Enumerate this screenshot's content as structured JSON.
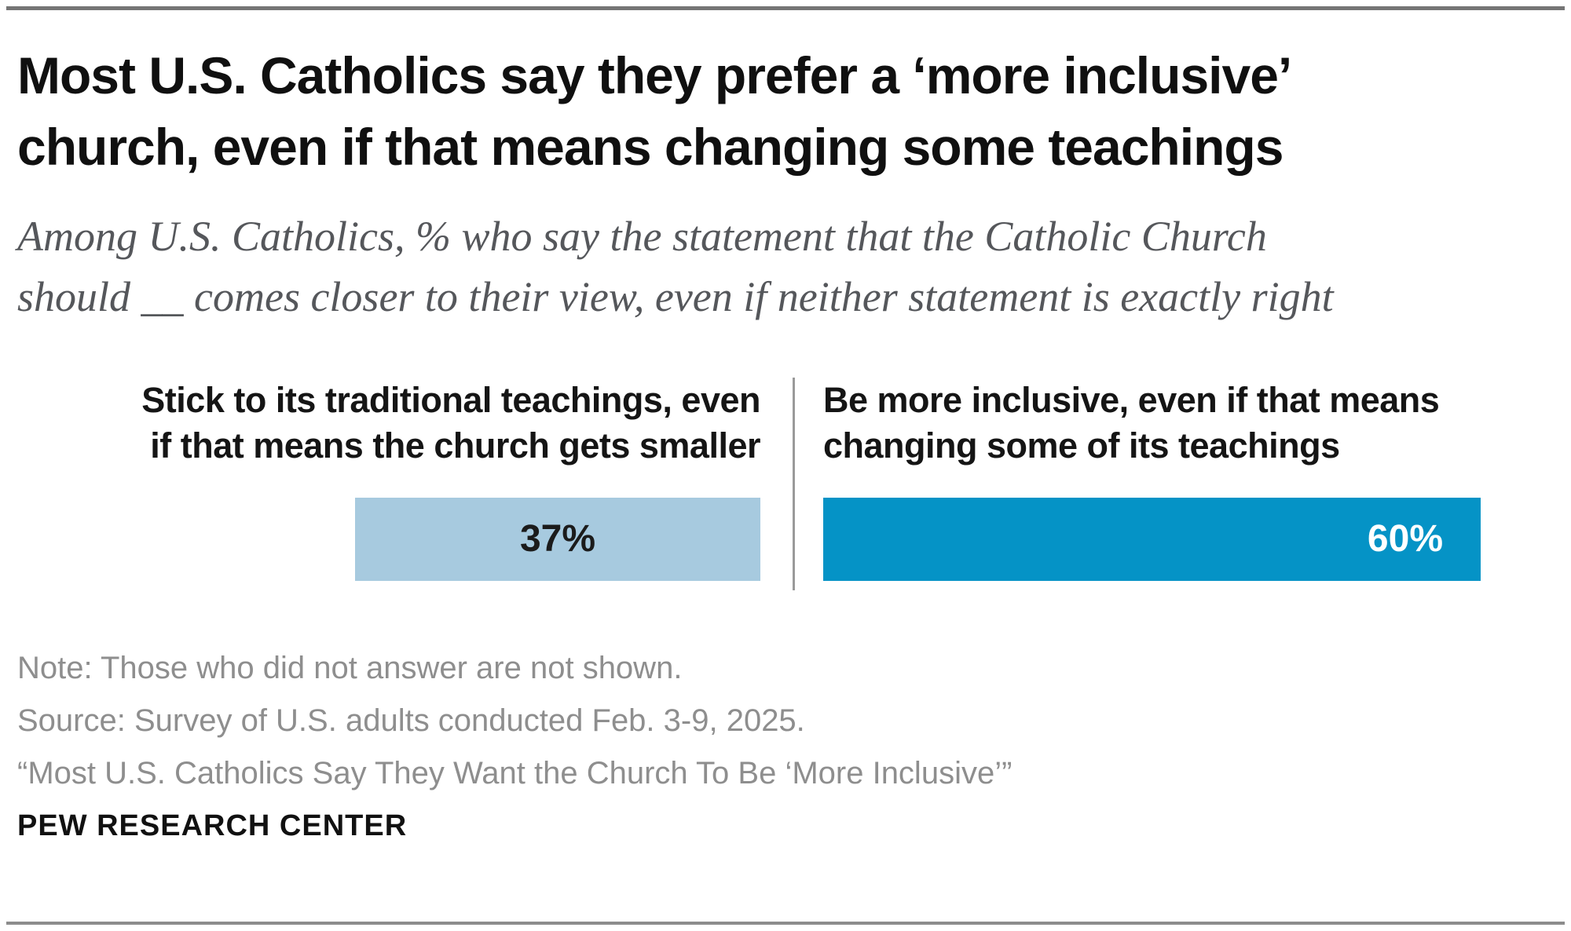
{
  "header": {
    "title_lines": [
      "Most U.S. Catholics say they prefer a ‘more inclusive’",
      "church, even if that means changing some teachings"
    ],
    "subtitle_lines": [
      "Among U.S. Catholics, % who say the statement that the Catholic Church",
      "should __ comes closer to their view, even if neither statement is exactly right"
    ]
  },
  "panels": {
    "left": {
      "header_lines": [
        "Stick to its traditional teachings, even",
        "if that means the church gets smaller"
      ]
    },
    "right": {
      "header_lines": [
        "Be more inclusive, even if that means",
        "changing some of its teachings"
      ]
    }
  },
  "chart_data": {
    "type": "bar",
    "orientation": "horizontal",
    "layout": "diverging-two-panel",
    "title": "Most U.S. Catholics say they prefer a ‘more inclusive’ church, even if that means changing some teachings",
    "subtitle": "Among U.S. Catholics, % who say the statement that the Catholic Church should __ comes closer to their view, even if neither statement is exactly right",
    "categories": [
      "Stick to its traditional teachings, even if that means the church gets smaller",
      "Be more inclusive, even if that means changing some of its teachings"
    ],
    "values": [
      37,
      60
    ],
    "value_labels": [
      "37%",
      "60%"
    ],
    "unit": "%",
    "value_range": [
      0,
      100
    ],
    "grid": false,
    "legend": "none",
    "colors": [
      "#a7cadf",
      "#0593c6"
    ]
  },
  "footer": {
    "note": "Note: Those who did not answer are not shown.",
    "source": "Source: Survey of U.S. adults conducted Feb. 3-9, 2025.",
    "report_title": "“Most U.S. Catholics Say They Want the Church To Be ‘More Inclusive’”",
    "brand": "PEW RESEARCH CENTER"
  }
}
